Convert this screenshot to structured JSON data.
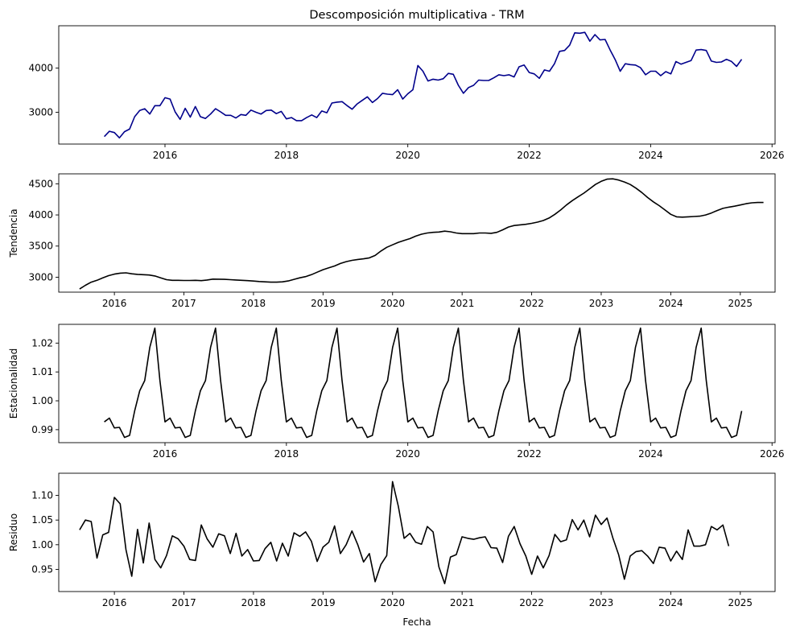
{
  "chart_data": [
    {
      "type": "line",
      "title": "Descomposición multiplicativa - TRM",
      "ylabel": "",
      "xlabel": "",
      "color": "#00008b",
      "x_start": 2015.0,
      "x_step": 0.08333,
      "xlim": [
        2014.25,
        2026.05
      ],
      "ylim": [
        2280,
        4960
      ],
      "xticks": [
        2016,
        2018,
        2020,
        2022,
        2024,
        2026
      ],
      "yticks": [
        3000,
        4000
      ],
      "ytick_labels": [
        "3000",
        "4000"
      ],
      "values": [
        2450,
        2570,
        2540,
        2420,
        2560,
        2620,
        2900,
        3040,
        3080,
        2960,
        3150,
        3150,
        3330,
        3300,
        3010,
        2840,
        3090,
        2890,
        3130,
        2900,
        2860,
        2960,
        3080,
        3010,
        2930,
        2930,
        2870,
        2950,
        2930,
        3050,
        3000,
        2960,
        3040,
        3050,
        2970,
        3020,
        2850,
        2880,
        2810,
        2810,
        2880,
        2940,
        2880,
        3030,
        2990,
        3210,
        3230,
        3240,
        3150,
        3070,
        3190,
        3270,
        3350,
        3220,
        3310,
        3430,
        3410,
        3400,
        3510,
        3300,
        3420,
        3510,
        4060,
        3930,
        3710,
        3750,
        3730,
        3760,
        3880,
        3860,
        3610,
        3430,
        3560,
        3610,
        3730,
        3720,
        3720,
        3780,
        3850,
        3830,
        3850,
        3800,
        4030,
        4070,
        3900,
        3870,
        3770,
        3960,
        3930,
        4100,
        4380,
        4400,
        4520,
        4800,
        4790,
        4810,
        4610,
        4760,
        4640,
        4650,
        4410,
        4190,
        3930,
        4100,
        4080,
        4070,
        4010,
        3850,
        3930,
        3930,
        3830,
        3920,
        3870,
        4150,
        4090,
        4130,
        4170,
        4410,
        4420,
        4400,
        4160,
        4130,
        4140,
        4200,
        4150,
        4040,
        4200
      ]
    },
    {
      "type": "line",
      "title": "",
      "ylabel": "Tendencia",
      "xlabel": "",
      "color": "#000000",
      "x_start": 2015.5,
      "x_step": 0.08333,
      "xlim": [
        2015.2,
        2025.5
      ],
      "ylim": [
        2760,
        4660
      ],
      "xticks": [
        2016,
        2017,
        2018,
        2019,
        2020,
        2021,
        2022,
        2023,
        2024,
        2025
      ],
      "yticks": [
        3000,
        3500,
        4000,
        4500
      ],
      "ytick_labels": [
        "3000",
        "3500",
        "4000",
        "4500"
      ],
      "values": [
        2810,
        2870,
        2920,
        2950,
        2990,
        3025,
        3050,
        3065,
        3070,
        3055,
        3045,
        3040,
        3035,
        3020,
        2990,
        2960,
        2950,
        2950,
        2948,
        2948,
        2950,
        2945,
        2955,
        2970,
        2968,
        2965,
        2960,
        2955,
        2950,
        2945,
        2938,
        2930,
        2925,
        2920,
        2920,
        2925,
        2940,
        2965,
        2990,
        3010,
        3040,
        3080,
        3120,
        3150,
        3180,
        3220,
        3250,
        3270,
        3285,
        3295,
        3310,
        3350,
        3420,
        3480,
        3520,
        3560,
        3590,
        3620,
        3660,
        3690,
        3710,
        3720,
        3725,
        3740,
        3730,
        3710,
        3700,
        3700,
        3700,
        3710,
        3710,
        3705,
        3720,
        3760,
        3805,
        3830,
        3840,
        3850,
        3865,
        3885,
        3910,
        3950,
        4010,
        4080,
        4160,
        4230,
        4290,
        4350,
        4420,
        4490,
        4540,
        4575,
        4580,
        4560,
        4530,
        4490,
        4430,
        4360,
        4280,
        4210,
        4150,
        4080,
        4010,
        3970,
        3965,
        3970,
        3975,
        3980,
        4000,
        4030,
        4070,
        4105,
        4125,
        4140,
        4160,
        4180,
        4195,
        4200,
        4200
      ]
    },
    {
      "type": "line",
      "title": "",
      "ylabel": "Estacionalidad",
      "xlabel": "",
      "color": "#000000",
      "x_start": 2015.0,
      "x_step": 0.08333,
      "xlim": [
        2014.25,
        2026.05
      ],
      "ylim": [
        0.9855,
        1.0265
      ],
      "xticks": [
        2016,
        2018,
        2020,
        2022,
        2024,
        2026
      ],
      "yticks": [
        0.99,
        1.0,
        1.01,
        1.02
      ],
      "ytick_labels": [
        "0.99",
        "1.00",
        "1.01",
        "1.02"
      ],
      "season": [
        0.9927,
        0.994,
        0.9906,
        0.9908,
        0.9873,
        0.988,
        0.9965,
        1.0035,
        1.007,
        1.0185,
        1.0252,
        1.007
      ],
      "n_points": 127
    },
    {
      "type": "line",
      "title": "",
      "ylabel": "Residuo",
      "xlabel": "Fecha",
      "color": "#000000",
      "x_start": 2015.5,
      "x_step": 0.08333,
      "xlim": [
        2015.2,
        2025.5
      ],
      "ylim": [
        0.905,
        1.145
      ],
      "xticks": [
        2016,
        2017,
        2018,
        2019,
        2020,
        2021,
        2022,
        2023,
        2024,
        2025
      ],
      "yticks": [
        0.95,
        1.0,
        1.05,
        1.1
      ],
      "ytick_labels": [
        "0.95",
        "1.00",
        "1.05",
        "1.10"
      ],
      "values": [
        1.03,
        1.05,
        1.047,
        0.973,
        1.02,
        1.025,
        1.096,
        1.083,
        0.99,
        0.936,
        1.031,
        0.963,
        1.044,
        0.97,
        0.953,
        0.978,
        1.018,
        1.012,
        0.997,
        0.97,
        0.968,
        1.04,
        1.012,
        0.995,
        1.022,
        1.018,
        0.982,
        1.023,
        0.977,
        0.99,
        0.967,
        0.968,
        0.992,
        1.005,
        0.967,
        1.003,
        0.977,
        1.024,
        1.017,
        1.026,
        1.007,
        0.966,
        0.995,
        1.005,
        1.038,
        0.982,
        1.0,
        1.028,
        1.0,
        0.965,
        0.982,
        0.925,
        0.96,
        0.978,
        1.128,
        1.078,
        1.013,
        1.023,
        1.005,
        1.001,
        1.037,
        1.026,
        0.955,
        0.921,
        0.975,
        0.98,
        1.016,
        1.013,
        1.011,
        1.014,
        1.016,
        0.994,
        0.993,
        0.964,
        1.017,
        1.037,
        1.002,
        0.977,
        0.94,
        0.977,
        0.953,
        0.978,
        1.021,
        1.006,
        1.01,
        1.051,
        1.03,
        1.05,
        1.016,
        1.06,
        1.041,
        1.054,
        1.014,
        0.98,
        0.93,
        0.977,
        0.986,
        0.988,
        0.977,
        0.962,
        0.995,
        0.993,
        0.967,
        0.987,
        0.97,
        1.03,
        0.997,
        0.997,
        1.0,
        1.037,
        1.03,
        1.04,
        0.997
      ]
    }
  ]
}
